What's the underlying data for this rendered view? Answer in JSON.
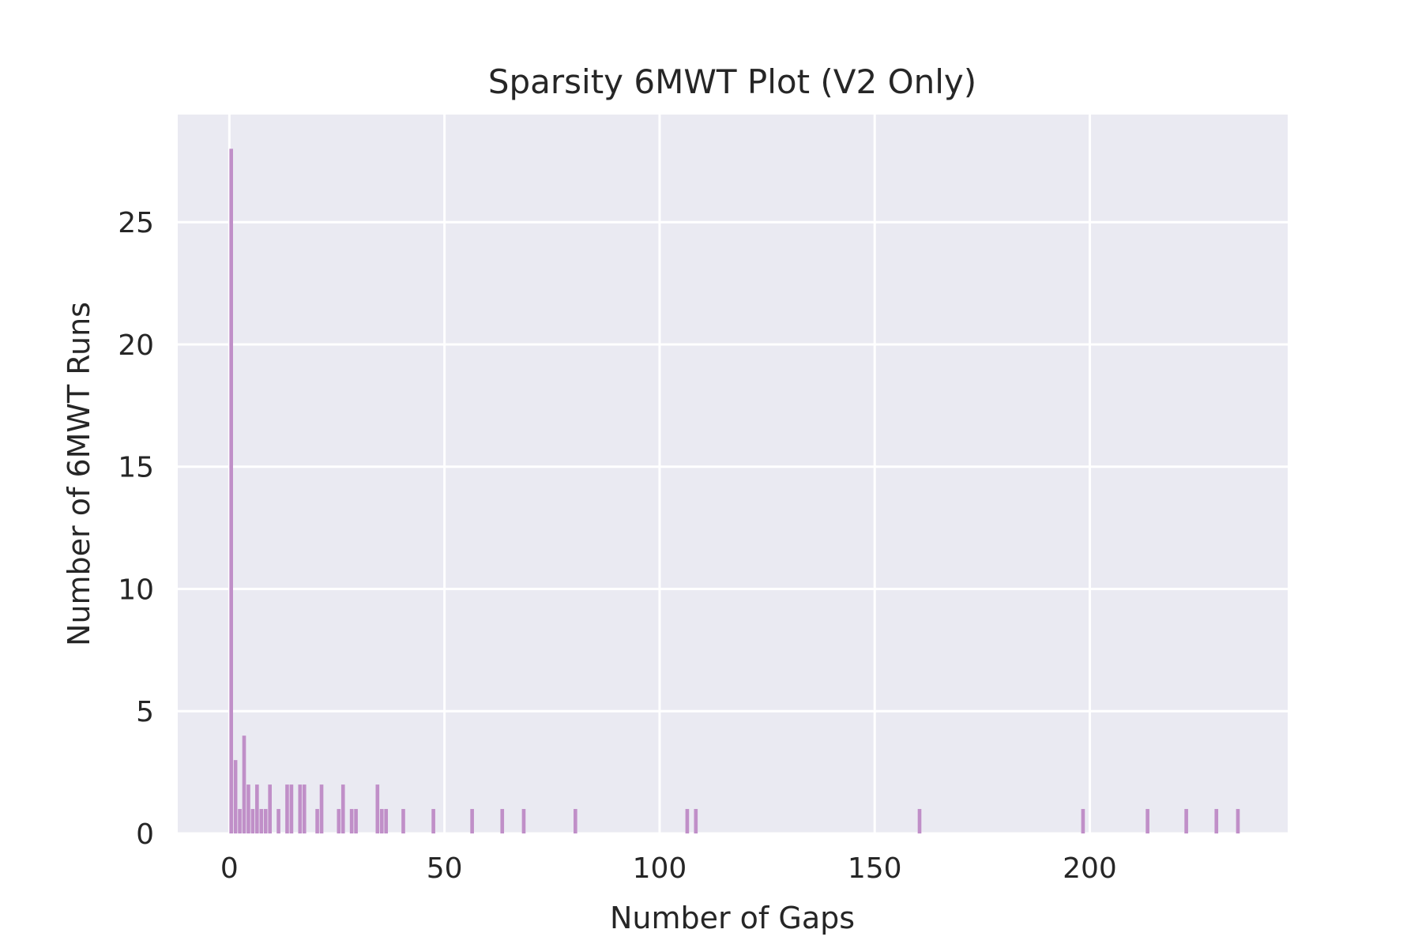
{
  "chart_data": {
    "type": "bar",
    "title": "Sparsity 6MWT Plot (V2 Only)",
    "xlabel": "Number of Gaps",
    "ylabel": "Number of 6MWT Runs",
    "xlim": [
      -12,
      246
    ],
    "ylim": [
      0,
      29.4
    ],
    "x_ticks": [
      0,
      50,
      100,
      150,
      200
    ],
    "x_tick_labels": [
      "0",
      "50",
      "100",
      "150",
      "200"
    ],
    "y_ticks": [
      0,
      5,
      10,
      15,
      20,
      25
    ],
    "y_tick_labels": [
      "0",
      "5",
      "10",
      "15",
      "20",
      "25"
    ],
    "grid": true,
    "bar_color": "#c08fc8",
    "plot_background": "#eaeaf2",
    "grid_color": "#ffffff",
    "bin_width": 0.85,
    "x": [
      0,
      1,
      2,
      3,
      4,
      5,
      6,
      7,
      8,
      9,
      11,
      13,
      14,
      16,
      17,
      20,
      21,
      25,
      26,
      28,
      29,
      34,
      35,
      36,
      40,
      47,
      56,
      63,
      68,
      80,
      106,
      108,
      160,
      198,
      213,
      222,
      229,
      234
    ],
    "values": [
      28,
      3,
      1,
      4,
      2,
      1,
      2,
      1,
      1,
      2,
      1,
      2,
      2,
      2,
      2,
      1,
      2,
      1,
      2,
      1,
      1,
      2,
      1,
      1,
      1,
      1,
      1,
      1,
      1,
      1,
      1,
      1,
      1,
      1,
      1,
      1,
      1,
      1
    ]
  }
}
